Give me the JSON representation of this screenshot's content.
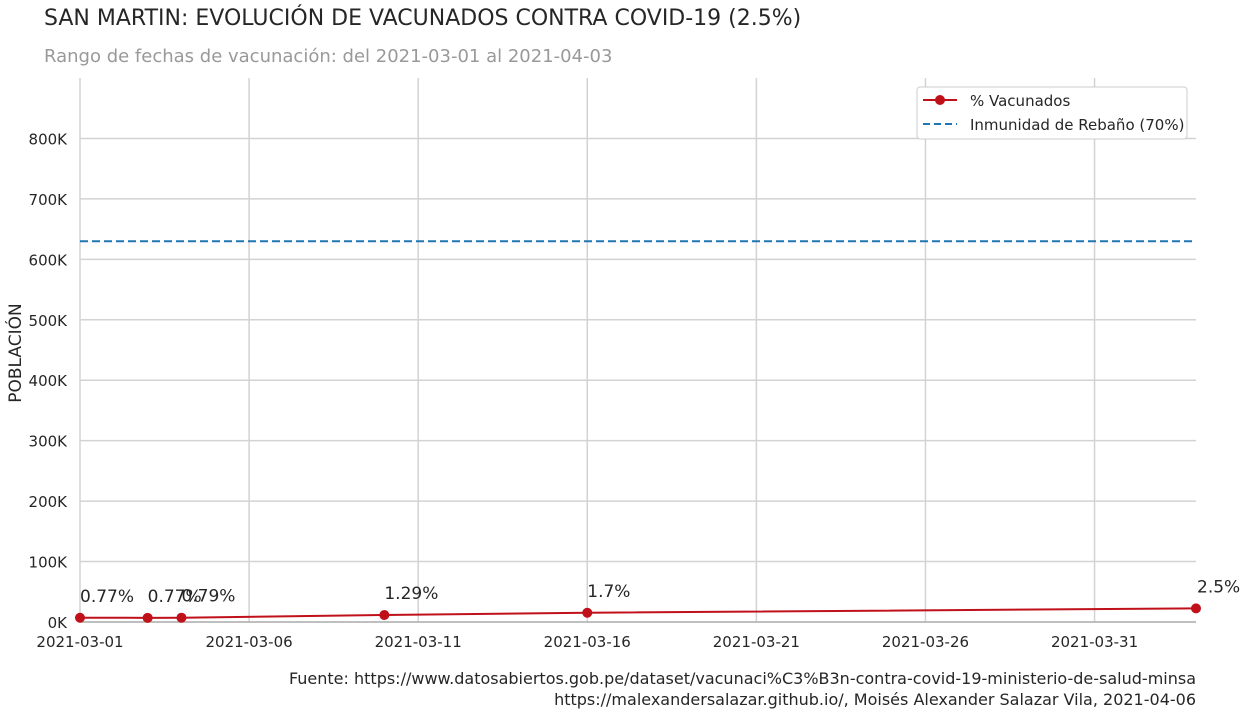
{
  "title": "SAN MARTIN: EVOLUCIÓN DE VACUNADOS CONTRA COVID-19 (2.5%)",
  "subtitle": "Rango de fechas de vacunación: del 2021-03-01 al 2021-04-03",
  "source_line1": "Fuente: https://www.datosabiertos.gob.pe/dataset/vacunaci%C3%B3n-contra-covid-19-ministerio-de-salud-minsa",
  "source_line2": "https://malexandersalazar.github.io/, Moisés Alexander Salazar Vila, 2021-04-06",
  "colors": {
    "vaccinated": "#c0111b",
    "herd": "#1f77b4",
    "grid": "#d3d3d3",
    "subtitle": "#999999",
    "text": "#262626"
  },
  "chart_data": {
    "type": "line",
    "xlabel": "",
    "ylabel": "POBLACIÓN",
    "x_type": "date",
    "xlim": [
      "2021-03-01",
      "2021-04-03"
    ],
    "ylim": [
      0,
      900000
    ],
    "y_ticks": [
      0,
      100000,
      200000,
      300000,
      400000,
      500000,
      600000,
      700000,
      800000
    ],
    "y_tick_labels": [
      "0K",
      "100K",
      "200K",
      "300K",
      "400K",
      "500K",
      "600K",
      "700K",
      "800K"
    ],
    "x_ticks": [
      "2021-03-01",
      "2021-03-06",
      "2021-03-11",
      "2021-03-16",
      "2021-03-21",
      "2021-03-26",
      "2021-03-31"
    ],
    "grid": true,
    "legend_position": "top-right",
    "series": [
      {
        "name": "% Vacunados",
        "style": "solid-marker",
        "points": [
          {
            "x": "2021-03-01",
            "y": 7000,
            "label": "0.77%"
          },
          {
            "x": "2021-03-03",
            "y": 6900,
            "label": "0.77%"
          },
          {
            "x": "2021-03-04",
            "y": 7100,
            "label": "0.79%"
          },
          {
            "x": "2021-03-10",
            "y": 11600,
            "label": "1.29%"
          },
          {
            "x": "2021-03-16",
            "y": 15300,
            "label": "1.7%"
          },
          {
            "x": "2021-04-03",
            "y": 22500,
            "label": "2.5%"
          }
        ]
      },
      {
        "name": "Inmunidad de Rebaño (70%)",
        "style": "dashed",
        "points": [
          {
            "x": "2021-03-01",
            "y": 630000
          },
          {
            "x": "2021-04-03",
            "y": 630000
          }
        ]
      }
    ]
  }
}
